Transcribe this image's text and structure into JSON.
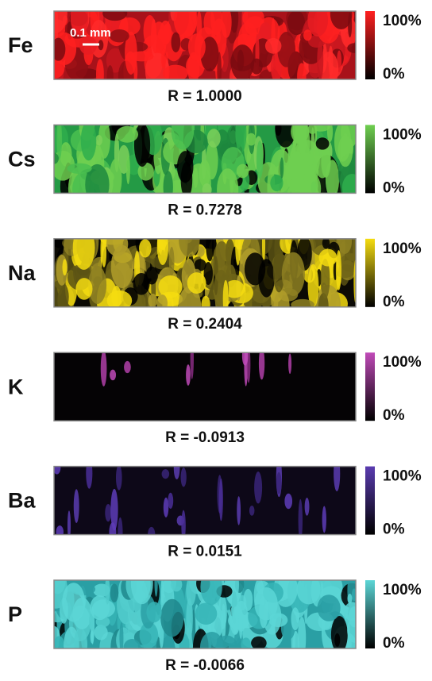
{
  "scale_bar": "0.1 mm",
  "panels": [
    {
      "element": "Fe",
      "scale_max": "100%",
      "scale_min": "0%",
      "correlation": "R = 1.0000"
    },
    {
      "element": "Cs",
      "scale_max": "100%",
      "scale_min": "0%",
      "correlation": "R = 0.7278"
    },
    {
      "element": "Na",
      "scale_max": "100%",
      "scale_min": "0%",
      "correlation": "R = 0.2404"
    },
    {
      "element": "K",
      "scale_max": "100%",
      "scale_min": "0%",
      "correlation": "R = -0.0913"
    },
    {
      "element": "Ba",
      "scale_max": "100%",
      "scale_min": "0%",
      "correlation": "R = 0.0151"
    },
    {
      "element": "P",
      "scale_max": "100%",
      "scale_min": "0%",
      "correlation": "R = -0.0066"
    }
  ]
}
